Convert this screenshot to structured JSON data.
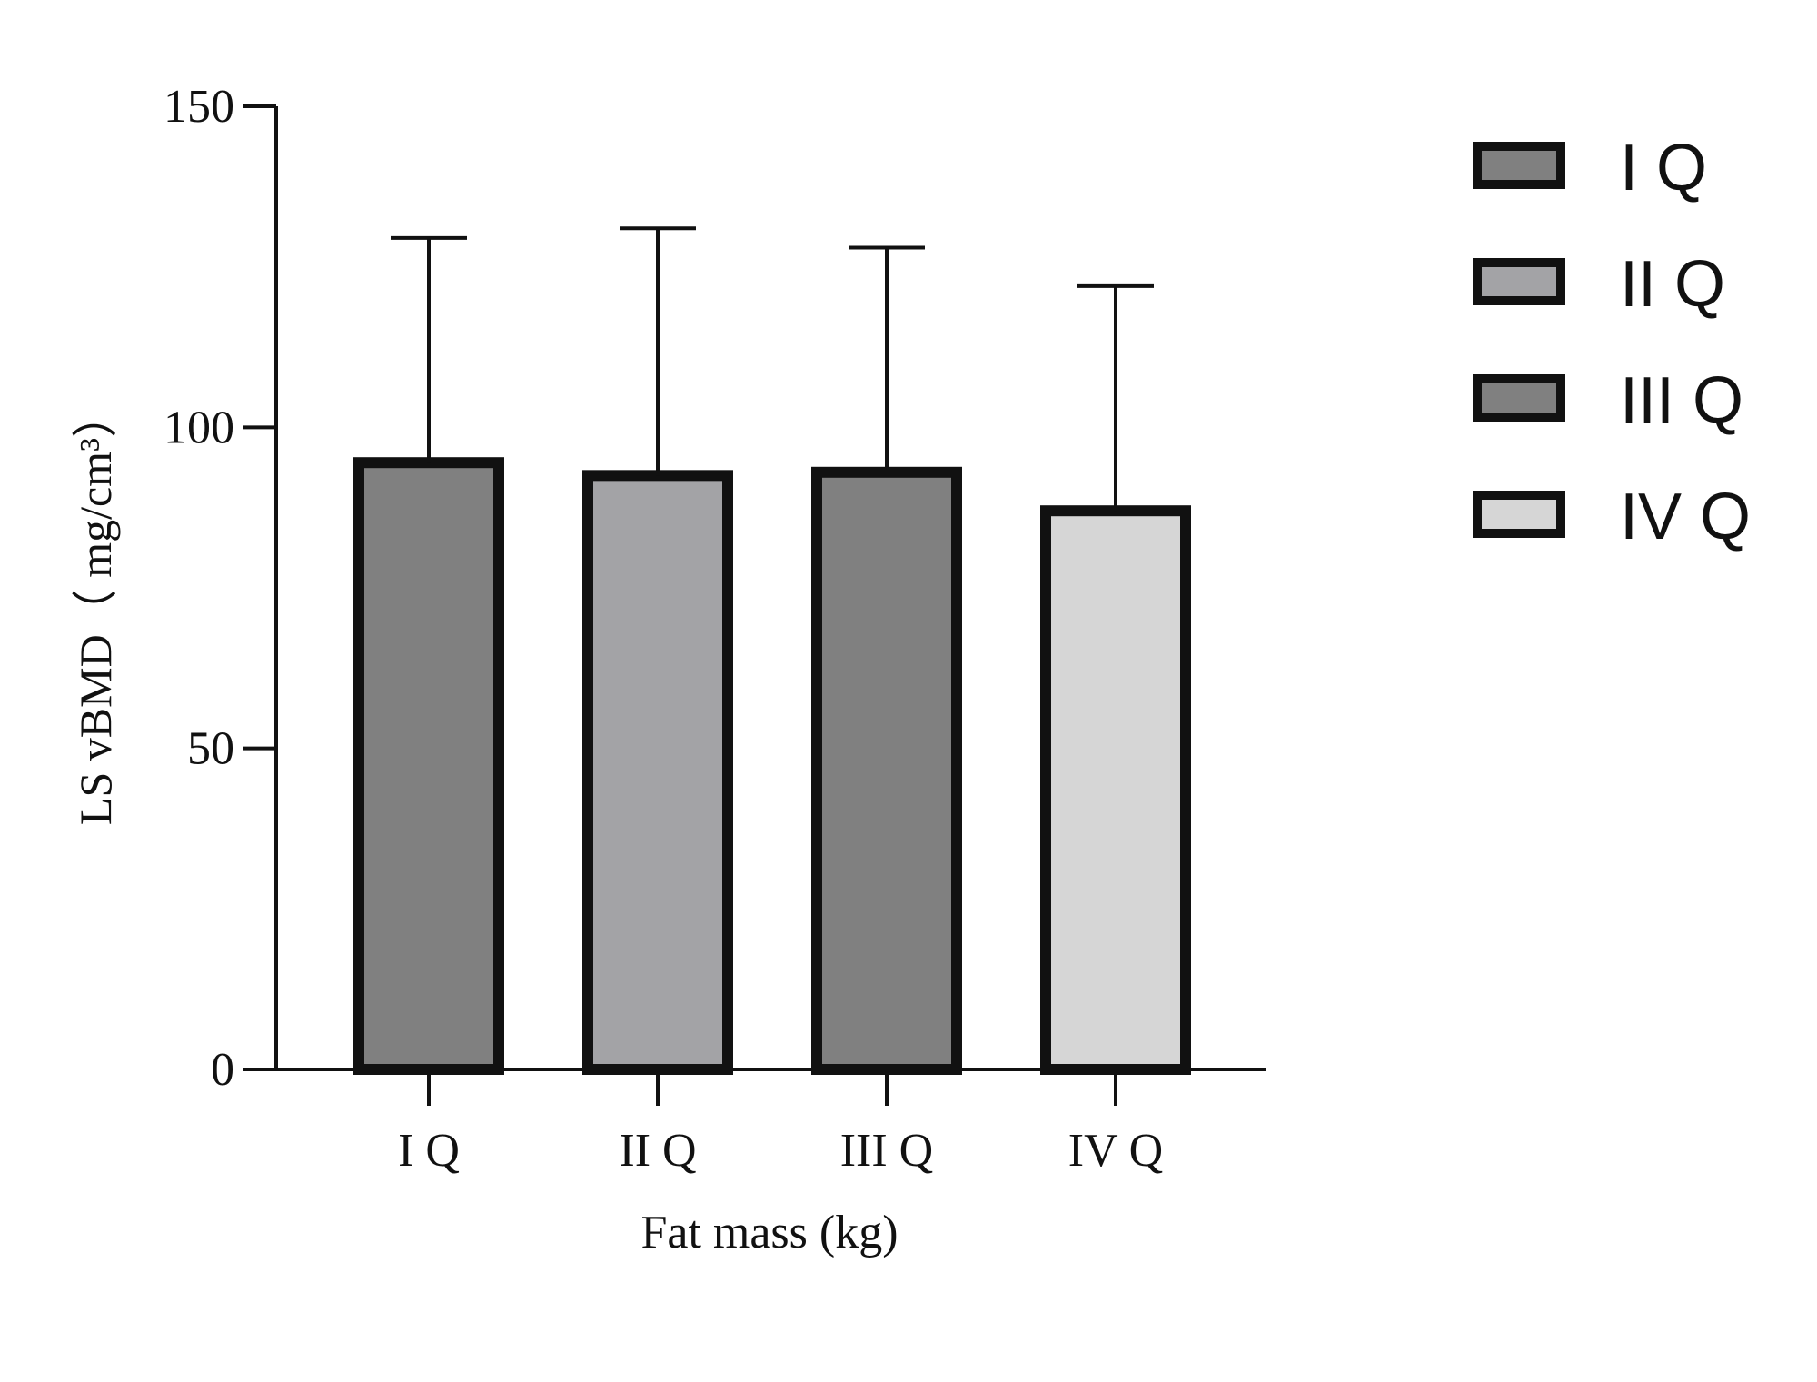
{
  "chart_data": {
    "type": "bar",
    "title": "",
    "xlabel": "Fat mass (kg)",
    "ylabel": "LS vBMD（ mg/cm³）",
    "ylim": [
      0,
      150
    ],
    "yticks": [
      "0",
      "50",
      "100",
      "150"
    ],
    "categories": [
      "I Q",
      "II Q",
      "III Q",
      "IV Q"
    ],
    "values": [
      94.5,
      92.5,
      93,
      87
    ],
    "error_upper": [
      129.5,
      131,
      128,
      122
    ],
    "bar_colors": [
      "#808080",
      "#a3a3a6",
      "#808080",
      "#d6d6d6"
    ],
    "grid": false,
    "legend": {
      "position": "top-right",
      "entries": [
        {
          "label": "I Q",
          "color": "#808080"
        },
        {
          "label": "II Q",
          "color": "#a3a3a6"
        },
        {
          "label": "III Q",
          "color": "#808080"
        },
        {
          "label": "IV Q",
          "color": "#d6d6d6"
        }
      ]
    }
  }
}
